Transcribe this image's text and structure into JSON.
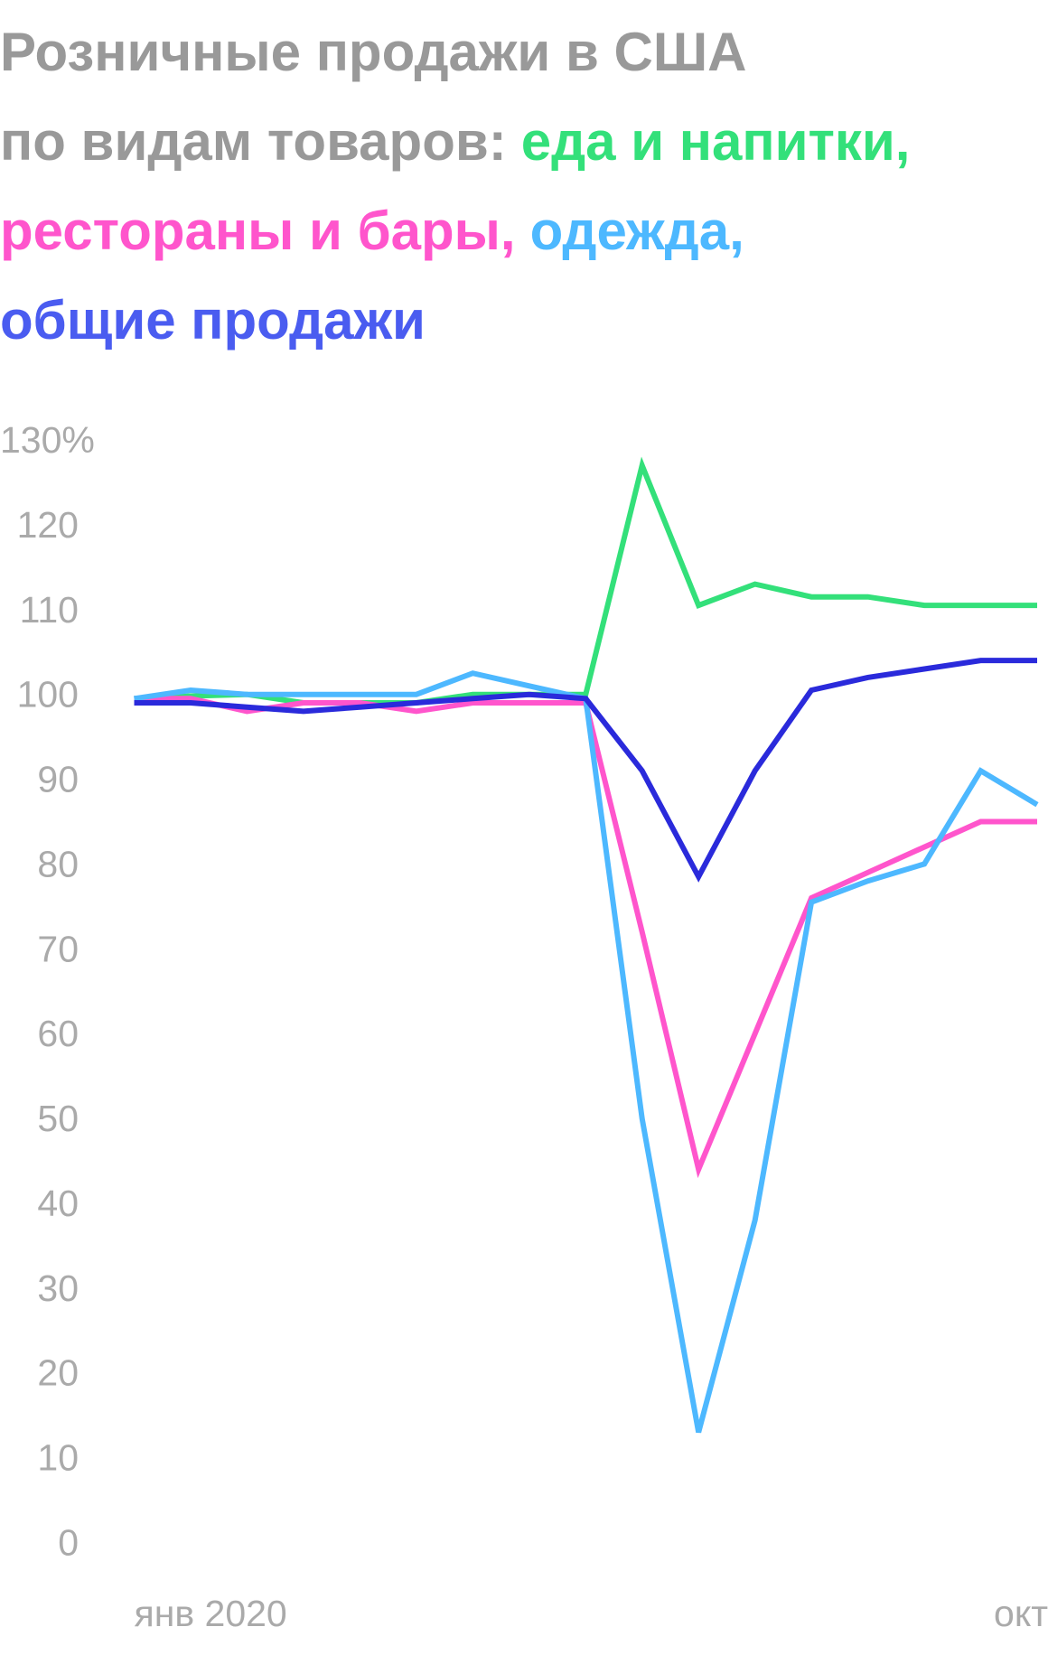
{
  "chart_data": {
    "type": "line",
    "title_lines": [
      [
        {
          "text": "Розничные продажи в США",
          "color": "#999999"
        }
      ],
      [
        {
          "text": "по видам товаров:",
          "color": "#999999"
        },
        {
          "text": "еда и напитки,",
          "color": "#33e07a"
        }
      ],
      [
        {
          "text": "рестораны и бары,",
          "color": "#ff55cc"
        },
        {
          "text": "одежда,",
          "color": "#4db8ff"
        }
      ],
      [
        {
          "text": "общие продажи",
          "color": "#4a5cf0"
        }
      ]
    ],
    "categories": [
      "янв 2020",
      null,
      null,
      null,
      null,
      null,
      null,
      null,
      null,
      null,
      null,
      null,
      null,
      null,
      null,
      null,
      "окт"
    ],
    "series": [
      {
        "color": "#33e07a",
        "values": [
          99.5,
          99.8,
          100,
          99,
          99,
          99,
          100,
          100,
          100,
          127,
          110.5,
          113,
          111.5,
          111.5,
          110.5,
          110.5,
          110.5
        ]
      },
      {
        "color": "#ff55cc",
        "values": [
          99.5,
          99.5,
          98,
          99,
          99,
          98,
          99,
          99,
          99,
          72,
          44,
          60,
          76,
          79,
          82,
          85,
          85
        ]
      },
      {
        "color": "#4db8ff",
        "values": [
          99.5,
          100.5,
          100,
          100,
          100,
          100,
          102.5,
          101,
          99.5,
          50,
          13,
          38,
          75.5,
          78,
          80,
          91,
          87
        ]
      },
      {
        "color": "#2a2adb",
        "values": [
          99,
          99,
          98.5,
          98,
          98.5,
          99,
          99.5,
          100,
          99.5,
          91,
          78.5,
          91,
          100.5,
          102,
          103,
          104,
          104
        ]
      }
    ],
    "ylim": [
      0,
      130
    ],
    "yticks": [
      0,
      10,
      20,
      30,
      40,
      50,
      60,
      70,
      80,
      90,
      100,
      110,
      120,
      {
        "value": 130,
        "label": "130%"
      }
    ],
    "grid": false
  }
}
